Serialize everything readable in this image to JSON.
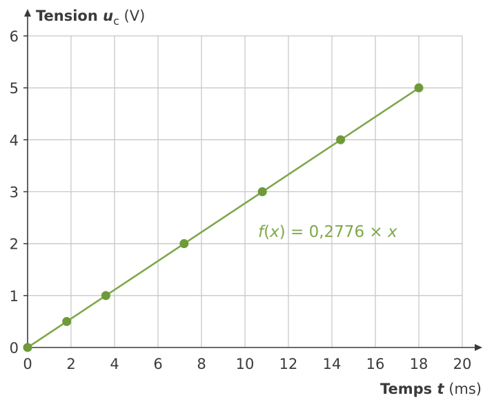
{
  "chart_data": {
    "type": "scatter",
    "x_ticks": [
      "0",
      "2",
      "4",
      "6",
      "8",
      "10",
      "12",
      "14",
      "16",
      "18",
      "20"
    ],
    "y_ticks": [
      "0",
      "1",
      "2",
      "3",
      "4",
      "5",
      "6"
    ],
    "xlim": [
      0,
      20
    ],
    "ylim": [
      0,
      6
    ],
    "grid": true,
    "ylabel": {
      "bold_text": "Tension ",
      "var": "u",
      "sub": "c",
      "unit": " (V)"
    },
    "xlabel": {
      "bold_text": "Temps ",
      "var": "t",
      "unit": " (ms)"
    },
    "series": [
      {
        "values": [
          {
            "x": 0,
            "y": 0
          },
          {
            "x": 1.8,
            "y": 0.5
          },
          {
            "x": 3.6,
            "y": 1.0
          },
          {
            "x": 7.2,
            "y": 2.0
          },
          {
            "x": 10.8,
            "y": 3.0
          },
          {
            "x": 14.4,
            "y": 4.0
          },
          {
            "x": 18.0,
            "y": 5.0
          }
        ],
        "color": "#6e9a3a"
      }
    ],
    "fit_line": {
      "slope": 0.2776,
      "x_range": [
        0,
        18
      ],
      "color": "#7fa84a",
      "label": {
        "f": "f",
        "open": "(",
        "x1": "x",
        "close": ")",
        "rest": " = 0,2776 × ",
        "x2": "x"
      }
    },
    "colors": {
      "axis": "#3a3a3a",
      "grid": "#c8c8c8"
    }
  }
}
